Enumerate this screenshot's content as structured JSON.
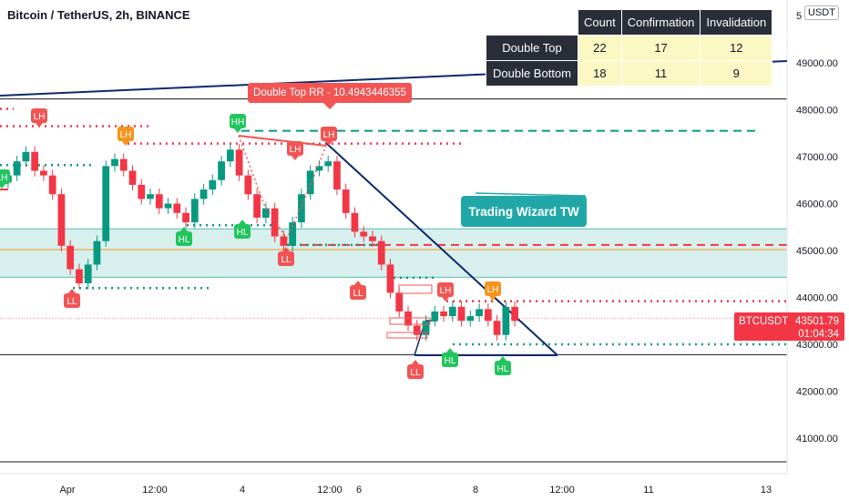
{
  "header": {
    "title": "Bitcoin / TetherUS, 2h, BINANCE",
    "currency": "USDT"
  },
  "stats_table": {
    "headers": [
      "",
      "Count",
      "Confirmation",
      "Invalidation"
    ],
    "rows": [
      {
        "label": "Double Top",
        "count": "22",
        "confirmation": "17",
        "invalidation": "12"
      },
      {
        "label": "Double Bottom",
        "count": "18",
        "confirmation": "11",
        "invalidation": "9"
      }
    ]
  },
  "labels": {
    "rr": "Double Top RR - 10.4943446355",
    "wizard": "Trading Wizard TW",
    "symbol": "BTCUSDT",
    "last_price": "43501.79",
    "countdown": "01:04:34"
  },
  "colors": {
    "up": "#089981",
    "down": "#f23645",
    "navy": "#0d2a6b",
    "green_marker": "#22c55e",
    "red_marker": "#f25454",
    "orange_marker": "#f7931a",
    "zone": "#d7f0ee"
  },
  "chart_data": {
    "type": "candlestick",
    "ylim": [
      40500,
      50500
    ],
    "y_ticks": [
      "49000.00",
      "48000.00",
      "47000.00",
      "46000.00",
      "45000.00",
      "44000.00",
      "43000.00",
      "42000.00",
      "41000.00"
    ],
    "x_ticks": [
      "Apr",
      "12:00",
      "4",
      "12:00",
      "6",
      "8",
      "12:00",
      "11",
      "13"
    ],
    "close_series": [
      46600,
      46900,
      47100,
      46700,
      46600,
      46200,
      45100,
      44600,
      44300,
      44700,
      45200,
      46800,
      46950,
      46700,
      46400,
      46100,
      46200,
      45900,
      46000,
      45800,
      45600,
      46100,
      46300,
      46500,
      46900,
      47150,
      46600,
      46200,
      45700,
      45900,
      45300,
      45100,
      45600,
      46200,
      46700,
      46800,
      46900,
      46300,
      45800,
      45400,
      45300,
      45200,
      44700,
      44100,
      43700,
      43400,
      43200,
      43500,
      43700,
      43600,
      43800,
      43500,
      43600,
      43750,
      43500,
      43200,
      43800,
      43500
    ],
    "levels": [
      {
        "name": "Double Top RR",
        "price": 47550
      },
      {
        "name": "LH level",
        "price": 48000
      },
      {
        "name": "confirmation",
        "price": 45120
      },
      {
        "name": "support",
        "price": 42780
      }
    ],
    "zone": [
      44430,
      45460
    ],
    "markers": [
      "HH",
      "LH",
      "LH",
      "LH",
      "LH",
      "LH",
      "LH",
      "LH",
      "LL",
      "LL",
      "LL",
      "LL",
      "HL",
      "HL",
      "HL",
      "HL",
      "HL"
    ]
  }
}
